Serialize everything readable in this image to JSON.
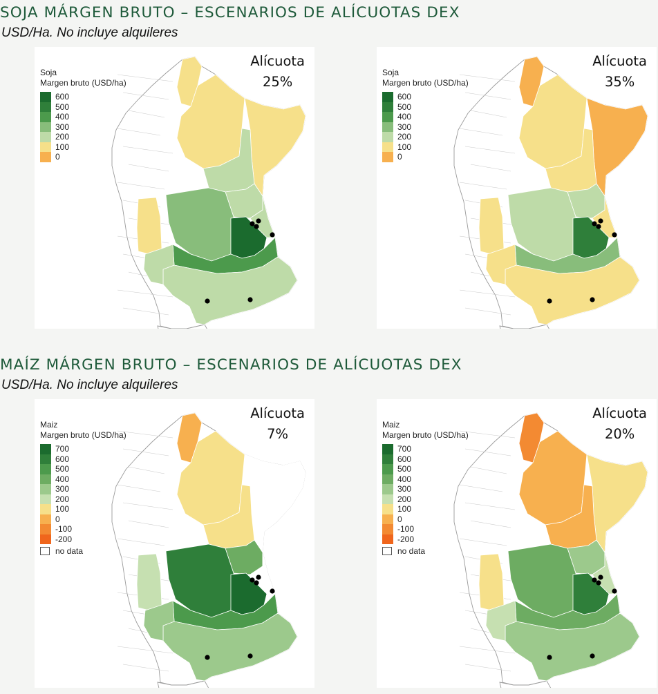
{
  "sections": [
    {
      "title": "SOJA MÁRGEN BRUTO – ESCENARIOS DE ALÍCUOTAS DEX",
      "subtitle": "USD/Ha. No incluye alquileres",
      "legend": {
        "crop": "Soja",
        "label": "Margen bruto (USD/ha)",
        "items": [
          {
            "label": "600",
            "color": "#1b6b2e"
          },
          {
            "label": "500",
            "color": "#2f7f3a"
          },
          {
            "label": "400",
            "color": "#4c9a4c"
          },
          {
            "label": "300",
            "color": "#88bd7b"
          },
          {
            "label": "200",
            "color": "#bedba8"
          },
          {
            "label": "100",
            "color": "#f6e08a"
          },
          {
            "label": "0",
            "color": "#f7b04f"
          }
        ],
        "no_data": ""
      },
      "maps": [
        {
          "scenario_label": "Alícuota",
          "rate": "25%",
          "fills": {
            "north": "#f6e08a",
            "northwest": "#f6e08a",
            "northeast_strip": "#f6e08a",
            "chaco": "#bedba8",
            "west_strip": "#f6e08a",
            "santa_fe": "#bedba8",
            "entre_rios": "#bedba8",
            "cordoba": "#88bd7b",
            "core": "#1b6b2e",
            "bsas_north": "#4c9a4c",
            "bsas_south": "#bedba8",
            "la_pampa": "#bedba8"
          }
        },
        {
          "scenario_label": "Alícuota",
          "rate": "35%",
          "fills": {
            "north": "#f7b04f",
            "northwest": "#f6e08a",
            "northeast_strip": "#f7b04f",
            "chaco": "#f6e08a",
            "west_strip": "#f6e08a",
            "santa_fe": "#bedba8",
            "entre_rios": "#f6e08a",
            "cordoba": "#bedba8",
            "core": "#2f7f3a",
            "bsas_north": "#88bd7b",
            "bsas_south": "#f6e08a",
            "la_pampa": "#f6e08a"
          }
        }
      ]
    },
    {
      "title": "MAÍZ MÁRGEN BRUTO – ESCENARIOS DE ALÍCUOTAS DEX",
      "subtitle": "USD/Ha. No incluye alquileres",
      "legend": {
        "crop": "Maiz",
        "label": "Margen bruto (USD/ha)",
        "items": [
          {
            "label": "700",
            "color": "#1b6b2e"
          },
          {
            "label": "600",
            "color": "#2f7f3a"
          },
          {
            "label": "500",
            "color": "#4c9a4c"
          },
          {
            "label": "400",
            "color": "#6dac62"
          },
          {
            "label": "300",
            "color": "#9cc98c"
          },
          {
            "label": "200",
            "color": "#c6e0b1"
          },
          {
            "label": "100",
            "color": "#f6e08a"
          },
          {
            "label": "0",
            "color": "#f7b04f"
          },
          {
            "label": "-100",
            "color": "#f38a32"
          },
          {
            "label": "-200",
            "color": "#f0661c"
          }
        ],
        "no_data": "no data"
      },
      "maps": [
        {
          "scenario_label": "Alícuota",
          "rate": "7%",
          "fills": {
            "north": "#f7b04f",
            "northwest": "#f6e08a",
            "northeast_strip": "#ffffff",
            "chaco": "#f6e08a",
            "west_strip": "#c6e0b1",
            "santa_fe": "#6dac62",
            "entre_rios": "#ffffff",
            "cordoba": "#2f7f3a",
            "core": "#1b6b2e",
            "bsas_north": "#4c9a4c",
            "bsas_south": "#9cc98c",
            "la_pampa": "#9cc98c"
          }
        },
        {
          "scenario_label": "Alícuota",
          "rate": "20%",
          "fills": {
            "north": "#f38a32",
            "northwest": "#f7b04f",
            "northeast_strip": "#f6e08a",
            "chaco": "#f7b04f",
            "west_strip": "#f6e08a",
            "santa_fe": "#9cc98c",
            "entre_rios": "#c6e0b1",
            "cordoba": "#6dac62",
            "core": "#2f7f3a",
            "bsas_north": "#6dac62",
            "bsas_south": "#9cc98c",
            "la_pampa": "#c6e0b1"
          }
        }
      ]
    }
  ]
}
